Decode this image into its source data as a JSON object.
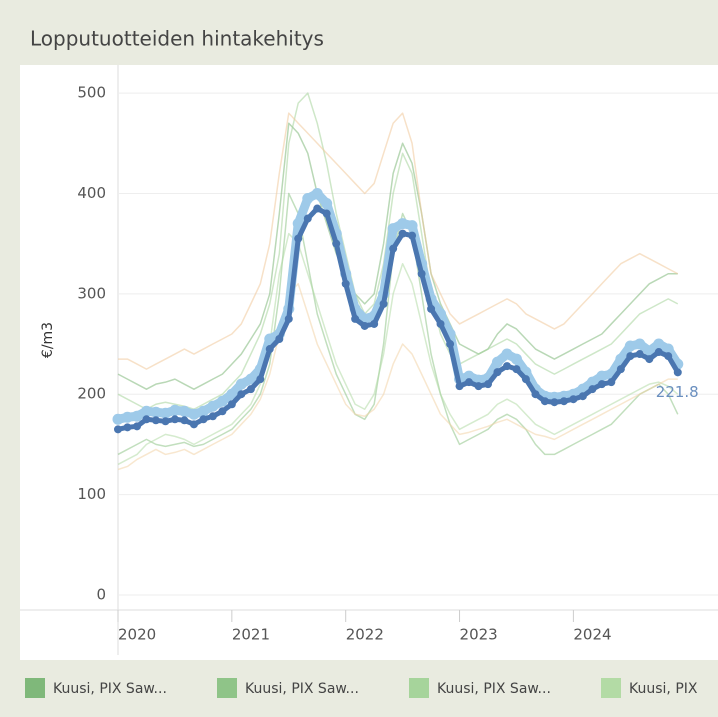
{
  "chart_data": {
    "type": "line",
    "title": "Lopputuotteiden hintakehitys",
    "y_label": "€/m3",
    "x": [
      2020.0,
      2020.083,
      2020.167,
      2020.25,
      2020.333,
      2020.417,
      2020.5,
      2020.583,
      2020.667,
      2020.75,
      2020.833,
      2020.917,
      2021.0,
      2021.083,
      2021.167,
      2021.25,
      2021.333,
      2021.417,
      2021.5,
      2021.583,
      2021.667,
      2021.75,
      2021.833,
      2021.917,
      2022.0,
      2022.083,
      2022.167,
      2022.25,
      2022.333,
      2022.417,
      2022.5,
      2022.583,
      2022.667,
      2022.75,
      2022.833,
      2022.917,
      2023.0,
      2023.083,
      2023.167,
      2023.25,
      2023.333,
      2023.417,
      2023.5,
      2023.583,
      2023.667,
      2023.75,
      2023.833,
      2023.917,
      2024.0,
      2024.083,
      2024.167,
      2024.25,
      2024.333,
      2024.417,
      2024.5,
      2024.583,
      2024.667,
      2024.75,
      2024.833,
      2024.917
    ],
    "xlim": [
      2020,
      2025.2
    ],
    "xticks": [
      2020,
      2021,
      2022,
      2023,
      2024
    ],
    "ylim": [
      -15,
      525
    ],
    "yticks": [
      0,
      100,
      200,
      300,
      400,
      500
    ],
    "grid": true,
    "series": [
      {
        "name": "Kuusi, PIX Saw...",
        "color": "#7fb87a",
        "values": [
          220,
          215,
          210,
          205,
          210,
          212,
          215,
          210,
          205,
          210,
          215,
          220,
          230,
          240,
          255,
          270,
          300,
          380,
          470,
          460,
          440,
          400,
          370,
          340,
          320,
          300,
          290,
          300,
          350,
          420,
          450,
          430,
          380,
          320,
          290,
          270,
          250,
          245,
          240,
          245,
          260,
          270,
          265,
          255,
          245,
          240,
          235,
          240,
          245,
          250,
          255,
          260,
          270,
          280,
          290,
          300,
          310,
          315,
          320,
          320
        ]
      },
      {
        "name": "Kuusi, PIX Saw...",
        "color": "#8fc488",
        "values": [
          140,
          145,
          150,
          155,
          150,
          148,
          150,
          152,
          148,
          150,
          155,
          160,
          165,
          175,
          185,
          200,
          230,
          300,
          400,
          380,
          330,
          280,
          250,
          220,
          200,
          180,
          175,
          190,
          250,
          340,
          380,
          360,
          300,
          240,
          200,
          170,
          150,
          155,
          160,
          165,
          175,
          180,
          175,
          165,
          150,
          140,
          140,
          145,
          150,
          155,
          160,
          165,
          170,
          180,
          190,
          200,
          205,
          210,
          200,
          180
        ]
      },
      {
        "name": "Kuusi, PIX Saw...",
        "color": "#a6d49b",
        "values": [
          200,
          195,
          190,
          185,
          190,
          192,
          190,
          188,
          185,
          190,
          195,
          200,
          210,
          220,
          240,
          260,
          290,
          340,
          450,
          490,
          500,
          470,
          430,
          380,
          340,
          300,
          280,
          290,
          330,
          400,
          440,
          420,
          360,
          300,
          260,
          240,
          230,
          235,
          240,
          245,
          250,
          255,
          250,
          240,
          230,
          225,
          220,
          225,
          230,
          235,
          240,
          245,
          250,
          260,
          270,
          280,
          285,
          290,
          295,
          290
        ]
      },
      {
        "name": "Kuusi, PIX",
        "color": "#b3dba5",
        "values": [
          130,
          135,
          140,
          150,
          155,
          160,
          158,
          155,
          150,
          155,
          160,
          165,
          170,
          180,
          190,
          210,
          250,
          320,
          360,
          350,
          320,
          290,
          260,
          230,
          210,
          190,
          185,
          200,
          240,
          300,
          330,
          310,
          270,
          230,
          200,
          180,
          165,
          170,
          175,
          180,
          190,
          195,
          190,
          180,
          170,
          165,
          160,
          165,
          170,
          175,
          180,
          185,
          190,
          195,
          200,
          205,
          210,
          212,
          208,
          200
        ]
      },
      {
        "color": "#f0c99a",
        "values": [
          235,
          235,
          230,
          225,
          230,
          235,
          240,
          245,
          240,
          245,
          250,
          255,
          260,
          270,
          290,
          310,
          350,
          420,
          480,
          470,
          460,
          450,
          440,
          430,
          420,
          410,
          400,
          410,
          440,
          470,
          480,
          450,
          380,
          320,
          300,
          280,
          270,
          275,
          280,
          285,
          290,
          295,
          290,
          280,
          275,
          270,
          265,
          270,
          280,
          290,
          300,
          310,
          320,
          330,
          335,
          340,
          335,
          330,
          325,
          320
        ]
      },
      {
        "color": "#f2d3a8",
        "values": [
          125,
          128,
          135,
          140,
          145,
          140,
          142,
          145,
          140,
          145,
          150,
          155,
          160,
          170,
          180,
          195,
          220,
          260,
          300,
          310,
          280,
          250,
          230,
          210,
          190,
          180,
          178,
          185,
          200,
          230,
          250,
          240,
          220,
          200,
          180,
          170,
          160,
          162,
          165,
          168,
          172,
          175,
          170,
          165,
          160,
          158,
          155,
          160,
          165,
          170,
          175,
          180,
          185,
          190,
          195,
          200,
          205,
          210,
          215,
          215
        ]
      },
      {
        "color": "#9ecae9",
        "marker": true,
        "values": [
          175,
          177,
          178,
          183,
          182,
          181,
          184,
          183,
          180,
          183,
          188,
          193,
          200,
          210,
          215,
          225,
          255,
          260,
          285,
          370,
          395,
          400,
          390,
          360,
          320,
          285,
          275,
          278,
          300,
          365,
          370,
          368,
          330,
          295,
          280,
          260,
          215,
          218,
          214,
          216,
          232,
          240,
          235,
          222,
          205,
          198,
          197,
          198,
          200,
          205,
          212,
          218,
          220,
          235,
          248,
          250,
          243,
          250,
          245,
          230
        ]
      },
      {
        "color": "#4a76b0",
        "marker": true,
        "end_label": true,
        "values": [
          165,
          167,
          168,
          175,
          174,
          173,
          175,
          174,
          170,
          175,
          178,
          183,
          190,
          200,
          205,
          215,
          245,
          255,
          275,
          355,
          375,
          385,
          380,
          350,
          310,
          275,
          268,
          270,
          290,
          345,
          360,
          358,
          320,
          285,
          270,
          250,
          208,
          212,
          208,
          210,
          222,
          228,
          225,
          215,
          200,
          193,
          192,
          193,
          195,
          198,
          205,
          210,
          212,
          225,
          238,
          240,
          235,
          242,
          238,
          221.8
        ]
      }
    ]
  }
}
